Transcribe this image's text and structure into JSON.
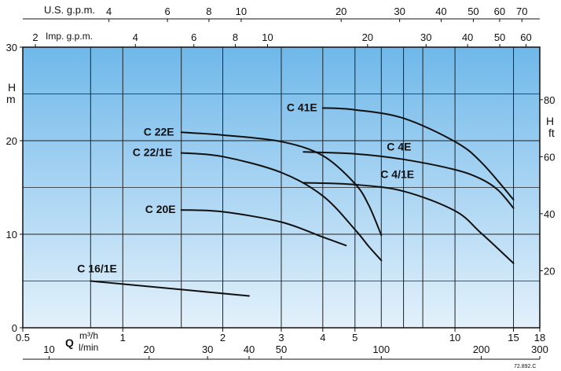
{
  "chart_data": {
    "type": "line",
    "x_scale": "log",
    "x": {
      "label": "Q",
      "unit_primary": "m³/h",
      "unit_secondary": "l/min",
      "lim": [
        0.5,
        18
      ]
    },
    "y": {
      "label": "H",
      "unit": "m",
      "lim": [
        0,
        30
      ]
    },
    "y2": {
      "label": "H",
      "unit": "ft"
    },
    "reference_code": "72.892.C",
    "gridlines_x": [
      0.8,
      1,
      1.5,
      2,
      3,
      4,
      5,
      6,
      7,
      8,
      10,
      15
    ],
    "gridlines_y": [
      5,
      10,
      15,
      20,
      25
    ],
    "axes": {
      "m3h": {
        "ticks": [
          {
            "v": 0.5,
            "t": "0.5"
          },
          {
            "v": 1,
            "t": "1"
          },
          {
            "v": 2,
            "t": "2"
          },
          {
            "v": 3,
            "t": "3"
          },
          {
            "v": 4,
            "t": "4"
          },
          {
            "v": 5,
            "t": "5"
          },
          {
            "v": 10,
            "t": "10"
          },
          {
            "v": 15,
            "t": "15"
          },
          {
            "v": 18,
            "t": "18"
          }
        ]
      },
      "lmin": {
        "label": "Q",
        "unit_m3h": "m³/h",
        "unit_lmin": "l/min",
        "ticks": [
          {
            "v": 10,
            "t": "10"
          },
          {
            "v": 20,
            "t": "20"
          },
          {
            "v": 30,
            "t": "30"
          },
          {
            "v": 40,
            "t": "40"
          },
          {
            "v": 50,
            "t": "50"
          },
          {
            "v": 100,
            "t": "100"
          },
          {
            "v": 200,
            "t": "200"
          },
          {
            "v": 300,
            "t": "300"
          }
        ]
      },
      "usgpm": {
        "label": "U.S. g.p.m.",
        "ticks": [
          {
            "v": 4,
            "t": "4"
          },
          {
            "v": 6,
            "t": "6"
          },
          {
            "v": 8,
            "t": "8"
          },
          {
            "v": 10,
            "t": "10"
          },
          {
            "v": 20,
            "t": "20"
          },
          {
            "v": 30,
            "t": "30"
          },
          {
            "v": 40,
            "t": "40"
          },
          {
            "v": 50,
            "t": "50"
          },
          {
            "v": 60,
            "t": "60"
          },
          {
            "v": 70,
            "t": "70"
          }
        ]
      },
      "impgpm": {
        "label": "Imp. g.p.m.",
        "ticks": [
          {
            "v": 2,
            "t": "2"
          },
          {
            "v": 4,
            "t": "4"
          },
          {
            "v": 6,
            "t": "6"
          },
          {
            "v": 8,
            "t": "8"
          },
          {
            "v": 10,
            "t": "10"
          },
          {
            "v": 20,
            "t": "20"
          },
          {
            "v": 30,
            "t": "30"
          },
          {
            "v": 40,
            "t": "40"
          },
          {
            "v": 50,
            "t": "50"
          },
          {
            "v": 60,
            "t": "60"
          }
        ]
      },
      "m": {
        "label": "H",
        "unit": "m",
        "ticks": [
          {
            "v": 0,
            "t": "0"
          },
          {
            "v": 10,
            "t": "10"
          },
          {
            "v": 20,
            "t": "20"
          },
          {
            "v": 30,
            "t": "30"
          }
        ]
      },
      "ft": {
        "label": "H",
        "unit": "ft",
        "ticks": [
          {
            "v": 20,
            "t": "20"
          },
          {
            "v": 40,
            "t": "40"
          },
          {
            "v": 60,
            "t": "60"
          },
          {
            "v": 80,
            "t": "80"
          }
        ]
      }
    },
    "series": [
      {
        "name": "C 16/1E",
        "x": [
          0.8,
          2.4
        ],
        "y": [
          5.0,
          3.4
        ]
      },
      {
        "name": "C 20E",
        "x": [
          1.5,
          2.0,
          3.0,
          4.0,
          4.7
        ],
        "y": [
          12.6,
          12.4,
          11.3,
          9.7,
          8.8
        ]
      },
      {
        "name": "C 22/1E",
        "x": [
          1.5,
          2.0,
          3.0,
          4.0,
          5.0,
          5.5,
          6.0
        ],
        "y": [
          18.7,
          18.3,
          16.6,
          14.1,
          10.5,
          8.7,
          7.2
        ]
      },
      {
        "name": "C 22E",
        "x": [
          1.5,
          2.0,
          3.0,
          4.0,
          5.0,
          5.5,
          6.0
        ],
        "y": [
          20.9,
          20.6,
          19.9,
          18.4,
          15.4,
          13.1,
          9.9
        ]
      },
      {
        "name": "C 4/1E",
        "x": [
          3.5,
          5.0,
          7.0,
          10.0,
          12.0,
          15.0
        ],
        "y": [
          15.5,
          15.3,
          14.6,
          12.5,
          10.1,
          6.9
        ]
      },
      {
        "name": "C 4E",
        "x": [
          3.5,
          5.0,
          7.0,
          10.0,
          12.0,
          13.5,
          15.0
        ],
        "y": [
          18.8,
          18.6,
          18.0,
          16.9,
          15.9,
          14.7,
          12.8
        ]
      },
      {
        "name": "C 41E",
        "x": [
          4.0,
          5.0,
          7.0,
          10.0,
          12.0,
          15.0
        ],
        "y": [
          23.5,
          23.3,
          22.4,
          19.9,
          17.7,
          13.7
        ]
      }
    ],
    "curve_labels": [
      {
        "series": "C 41E",
        "text": "C 41E"
      },
      {
        "series": "C 22E",
        "text": "C 22E"
      },
      {
        "series": "C 22/1E",
        "text": "C 22/1E"
      },
      {
        "series": "C 4E",
        "text": "C 4E"
      },
      {
        "series": "C 4/1E",
        "text": "C 4/1E"
      },
      {
        "series": "C 20E",
        "text": "C 20E"
      },
      {
        "series": "C 16/1E",
        "text": "C 16/1E"
      }
    ],
    "colors": {
      "plot_top": "#6fb8ea",
      "plot_bottom": "#e3f1fb",
      "curve": "#111111",
      "grid": "#222222"
    }
  }
}
